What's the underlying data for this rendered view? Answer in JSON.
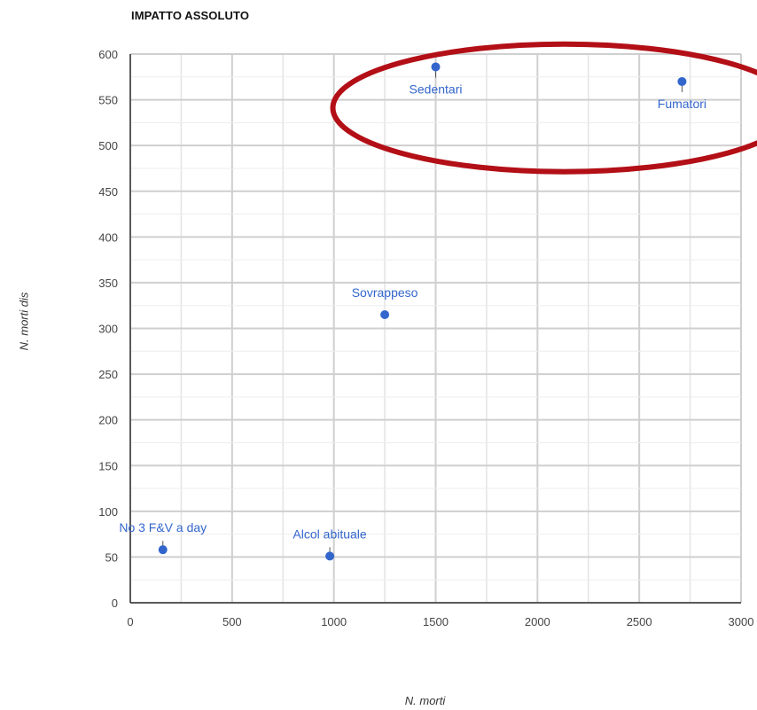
{
  "chart_data": {
    "type": "scatter",
    "title": "IMPATTO ASSOLUTO",
    "xlabel": "N. morti",
    "ylabel": "N. morti dis",
    "xlim": [
      0,
      3000
    ],
    "ylim": [
      0,
      600
    ],
    "x_ticks": [
      0,
      500,
      1000,
      1500,
      2000,
      2500,
      3000
    ],
    "y_ticks": [
      0,
      50,
      100,
      150,
      200,
      250,
      300,
      350,
      400,
      450,
      500,
      550,
      600
    ],
    "grid": true,
    "point_color": "#3366cc",
    "label_color": "#3366cc",
    "highlight_color": "#b30f17",
    "points": [
      {
        "label": "No 3 F&V a day",
        "x": 160,
        "y": 58
      },
      {
        "label": "Alcol abituale",
        "x": 980,
        "y": 51
      },
      {
        "label": "Sovrappeso",
        "x": 1250,
        "y": 315
      },
      {
        "label": "Sedentari",
        "x": 1500,
        "y": 586
      },
      {
        "label": "Fumatori",
        "x": 2710,
        "y": 570
      }
    ],
    "highlighted": [
      "Sedentari",
      "Fumatori"
    ]
  }
}
